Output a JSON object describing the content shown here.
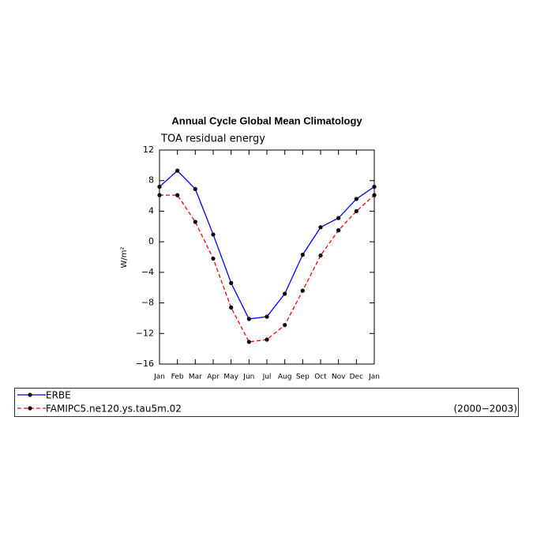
{
  "chart_data": {
    "type": "line",
    "title": "Annual Cycle Global Mean Climatology",
    "subtitle": "TOA residual energy",
    "y_label": "W/m²",
    "categories": [
      "Jan",
      "Feb",
      "Mar",
      "Apr",
      "May",
      "Jun",
      "Jul",
      "Aug",
      "Sep",
      "Oct",
      "Nov",
      "Dec",
      "Jan"
    ],
    "series": [
      {
        "name": "ERBE",
        "color": "#0000ff",
        "dash": false,
        "values": [
          7.2,
          9.3,
          6.9,
          0.95,
          -5.4,
          -10.1,
          -9.8,
          -6.8,
          -1.7,
          1.9,
          3.1,
          5.6,
          7.2
        ]
      },
      {
        "name": "FAMIPC5.ne120.ys.tau5m.02",
        "color": "#ff0000",
        "dash": true,
        "values": [
          6.1,
          6.1,
          2.6,
          -2.2,
          -8.6,
          -13.1,
          -12.8,
          -10.9,
          -6.4,
          -1.8,
          1.5,
          4.0,
          6.1
        ]
      }
    ],
    "legend_note": "(2000−2003)",
    "ylim": [
      -16,
      12
    ],
    "yticks": [
      {
        "value": -16,
        "label": "−16"
      },
      {
        "value": -12,
        "label": "−12"
      },
      {
        "value": -8,
        "label": "−8"
      },
      {
        "value": -4,
        "label": "−4"
      },
      0,
      4,
      8,
      12
    ],
    "grid": false
  }
}
